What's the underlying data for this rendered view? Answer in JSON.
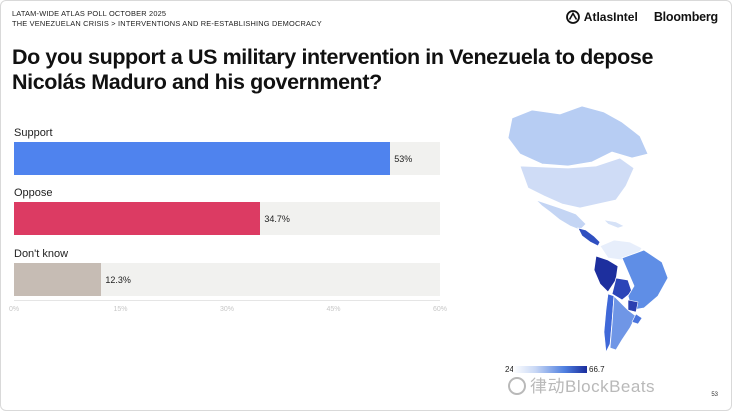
{
  "header": {
    "line1": "LATAM-WIDE ATLAS POLL OCTOBER 2025",
    "line2": "THE VENEZUELAN CRISIS > INTERVENTIONS AND RE-ESTABLISHING DEMOCRACY"
  },
  "brands": {
    "atlas": "AtlasIntel",
    "bloomberg": "Bloomberg"
  },
  "question": "Do you support a US military intervention in Venezuela to depose Nicolás Maduro and his government?",
  "chart_data": {
    "type": "bar",
    "orientation": "horizontal",
    "categories": [
      "Support",
      "Oppose",
      "Don't know"
    ],
    "values": [
      53,
      34.7,
      12.3
    ],
    "value_labels": [
      "53%",
      "34.7%",
      "12.3%"
    ],
    "colors": [
      "#4f83ee",
      "#dc3b63",
      "#c6bcb4"
    ],
    "xlim": [
      0,
      60
    ],
    "xticks": [
      "0%",
      "15%",
      "30%",
      "45%",
      "60%"
    ],
    "xtick_values": [
      0,
      15,
      30,
      45,
      60
    ],
    "grid": false
  },
  "map": {
    "legend_min": "24.2",
    "legend_max": "66.7"
  },
  "page_number": "53",
  "watermark": "律动BlockBeats"
}
